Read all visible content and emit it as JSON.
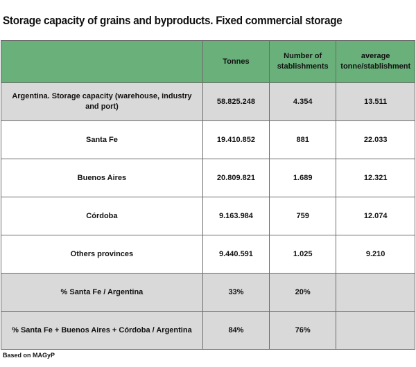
{
  "title": "Storage capacity of grains and byproducts. Fixed commercial storage",
  "table": {
    "headers": [
      "",
      "Tonnes",
      "Number of stablishments",
      "average tonne/stablishment"
    ],
    "rows": [
      {
        "label": "Argentina. Storage capacity (warehouse, industry and port)",
        "tonnes": "58.825.248",
        "establishments": "4.354",
        "average": "13.511"
      },
      {
        "label": "Santa Fe",
        "tonnes": "19.410.852",
        "establishments": "881",
        "average": "22.033"
      },
      {
        "label": "Buenos Aires",
        "tonnes": "20.809.821",
        "establishments": "1.689",
        "average": "12.321"
      },
      {
        "label": "Córdoba",
        "tonnes": "9.163.984",
        "establishments": "759",
        "average": "12.074"
      },
      {
        "label": "Others provinces",
        "tonnes": "9.440.591",
        "establishments": "1.025",
        "average": "9.210"
      },
      {
        "label": "% Santa Fe / Argentina",
        "tonnes": "33%",
        "establishments": "20%",
        "average": ""
      },
      {
        "label": "% Santa Fe + Buenos Aires + Córdoba / Argentina",
        "tonnes": "84%",
        "establishments": "76%",
        "average": ""
      }
    ]
  },
  "colors": {
    "header": "#6ab07a",
    "shaded_row": "#d9d9d9"
  },
  "source": "Based on MAGyP"
}
